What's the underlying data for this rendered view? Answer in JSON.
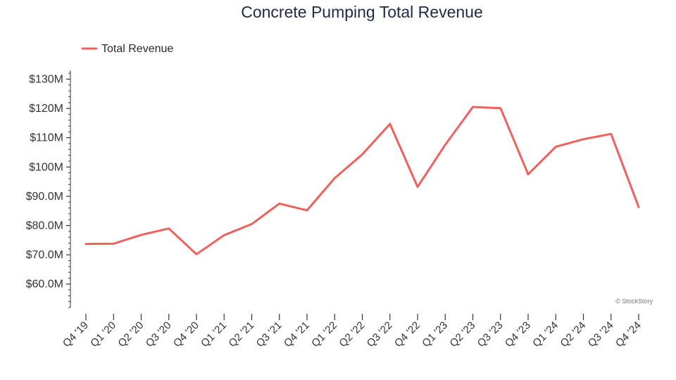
{
  "chart_data": {
    "type": "line",
    "title": "Concrete Pumping Total Revenue",
    "xlabel": "",
    "ylabel": "",
    "categories": [
      "Q4 '19",
      "Q1 '20",
      "Q2 '20",
      "Q3 '20",
      "Q4 '20",
      "Q1 '21",
      "Q2 '21",
      "Q3 '21",
      "Q4 '21",
      "Q1 '22",
      "Q2 '22",
      "Q3 '22",
      "Q4 '22",
      "Q1 '23",
      "Q2 '23",
      "Q3 '23",
      "Q4 '23",
      "Q1 '24",
      "Q2 '24",
      "Q3 '24",
      "Q4 '24"
    ],
    "series": [
      {
        "name": "Total Revenue",
        "color": "#f0605d",
        "values": [
          73.7,
          73.8,
          76.8,
          79.0,
          70.2,
          76.7,
          80.5,
          87.5,
          85.2,
          96.2,
          104.3,
          114.7,
          93.2,
          107.6,
          120.5,
          120.1,
          97.5,
          106.9,
          109.5,
          111.3,
          86.3
        ]
      }
    ],
    "ylim": [
      52,
      133
    ],
    "yticks": [
      60,
      70,
      80,
      90,
      100,
      110,
      120,
      130
    ],
    "ytick_labels": [
      "$60.0M",
      "$70.0M",
      "$80.0M",
      "$90.0M",
      "$100M",
      "$110M",
      "$120M",
      "$130M"
    ],
    "grid": false,
    "legend_position": "top-left"
  },
  "watermark": "© StockStory"
}
